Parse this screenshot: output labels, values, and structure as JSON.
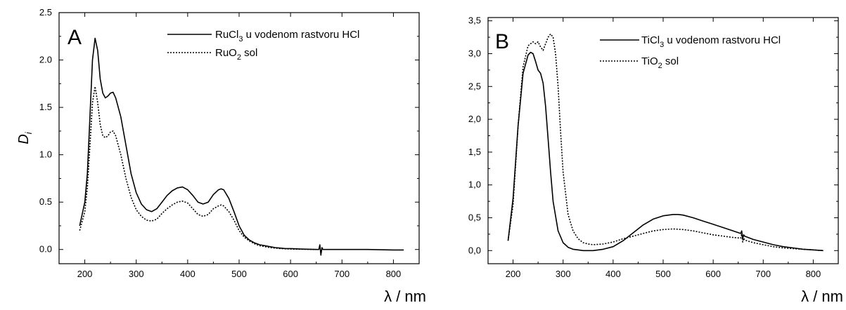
{
  "chart_data": [
    {
      "type": "line",
      "panel_letter": "A",
      "xlabel": "λ / nm",
      "ylabel": "D",
      "ylabel_sub": "i",
      "xlim": [
        150,
        850
      ],
      "ylim": [
        -0.15,
        2.5
      ],
      "xticks": [
        200,
        300,
        400,
        500,
        600,
        700,
        800
      ],
      "xtick_labels": [
        "200",
        "300",
        "400",
        "500",
        "600",
        "700",
        "800"
      ],
      "yticks": [
        0.0,
        0.5,
        1.0,
        1.5,
        2.0,
        2.5
      ],
      "ytick_labels": [
        "0.0",
        "0.5",
        "1.0",
        "1.5",
        "2.0",
        "2.5"
      ],
      "grid": false,
      "legend_position": "top-right",
      "series": [
        {
          "name": "RuCl",
          "name_sub": "3",
          "name_rest": " u vodenom rastvoru HCl",
          "style": "solid",
          "x": [
            190,
            200,
            205,
            210,
            215,
            220,
            225,
            230,
            235,
            240,
            245,
            250,
            255,
            260,
            270,
            280,
            290,
            300,
            310,
            320,
            330,
            340,
            350,
            360,
            370,
            380,
            390,
            400,
            410,
            420,
            430,
            440,
            450,
            460,
            465,
            470,
            480,
            490,
            500,
            510,
            520,
            530,
            540,
            550,
            560,
            570,
            580,
            590,
            600,
            620,
            650,
            655,
            657,
            659,
            661,
            663,
            670,
            700,
            750,
            800,
            820
          ],
          "y": [
            0.25,
            0.5,
            0.8,
            1.4,
            2.0,
            2.23,
            2.1,
            1.8,
            1.65,
            1.6,
            1.62,
            1.65,
            1.66,
            1.6,
            1.4,
            1.1,
            0.8,
            0.6,
            0.48,
            0.42,
            0.4,
            0.43,
            0.5,
            0.57,
            0.62,
            0.65,
            0.66,
            0.63,
            0.57,
            0.5,
            0.48,
            0.5,
            0.58,
            0.63,
            0.64,
            0.63,
            0.54,
            0.4,
            0.25,
            0.15,
            0.1,
            0.07,
            0.05,
            0.04,
            0.03,
            0.02,
            0.015,
            0.01,
            0.01,
            0.005,
            0.0,
            0.0,
            0.05,
            -0.06,
            0.02,
            0.0,
            0.0,
            0.0,
            0.0,
            -0.005,
            -0.005
          ]
        },
        {
          "name": "RuO",
          "name_sub": "2",
          "name_rest": " sol",
          "style": "dotted",
          "x": [
            190,
            200,
            205,
            210,
            215,
            220,
            225,
            230,
            235,
            240,
            245,
            250,
            255,
            260,
            270,
            280,
            290,
            300,
            310,
            320,
            330,
            340,
            350,
            360,
            370,
            380,
            390,
            400,
            410,
            420,
            430,
            440,
            450,
            460,
            465,
            470,
            480,
            490,
            500,
            510,
            520,
            530,
            540,
            550,
            560,
            570,
            580,
            600,
            650
          ],
          "y": [
            0.2,
            0.4,
            0.65,
            1.1,
            1.55,
            1.72,
            1.55,
            1.32,
            1.2,
            1.18,
            1.2,
            1.24,
            1.25,
            1.2,
            1.0,
            0.75,
            0.55,
            0.42,
            0.35,
            0.31,
            0.3,
            0.32,
            0.38,
            0.43,
            0.47,
            0.5,
            0.51,
            0.49,
            0.43,
            0.37,
            0.35,
            0.37,
            0.43,
            0.46,
            0.47,
            0.46,
            0.4,
            0.31,
            0.2,
            0.13,
            0.09,
            0.06,
            0.04,
            0.03,
            0.02,
            0.015,
            0.01,
            0.005,
            0.0
          ]
        }
      ]
    },
    {
      "type": "line",
      "panel_letter": "B",
      "xlabel": "λ / nm",
      "xlim": [
        150,
        850
      ],
      "ylim": [
        -0.2,
        3.55
      ],
      "xticks": [
        200,
        300,
        400,
        500,
        600,
        700,
        800
      ],
      "xtick_labels": [
        "200",
        "300",
        "400",
        "500",
        "600",
        "700",
        "800"
      ],
      "yticks": [
        0.0,
        0.5,
        1.0,
        1.5,
        2.0,
        2.5,
        3.0,
        3.5
      ],
      "ytick_labels": [
        "0,0",
        "0,5",
        "1,0",
        "1,5",
        "2,0",
        "2,5",
        "3,0",
        "3,5"
      ],
      "grid": false,
      "legend_position": "top-right",
      "series": [
        {
          "name": "TiCl",
          "name_sub": "3",
          "name_rest": " u vodenom rastvoru HCl",
          "style": "solid",
          "x": [
            190,
            200,
            210,
            220,
            230,
            235,
            240,
            245,
            250,
            255,
            260,
            265,
            270,
            275,
            280,
            290,
            300,
            310,
            320,
            330,
            340,
            350,
            360,
            380,
            400,
            420,
            440,
            460,
            480,
            500,
            520,
            530,
            540,
            560,
            580,
            600,
            620,
            640,
            655,
            657,
            659,
            661,
            663,
            680,
            700,
            720,
            740,
            760,
            780,
            800,
            820
          ],
          "y": [
            0.15,
            0.8,
            1.9,
            2.7,
            2.98,
            3.02,
            3.0,
            2.88,
            2.75,
            2.7,
            2.55,
            2.2,
            1.7,
            1.2,
            0.75,
            0.3,
            0.12,
            0.05,
            0.02,
            0.01,
            0.0,
            0.0,
            0.0,
            0.02,
            0.06,
            0.15,
            0.27,
            0.39,
            0.48,
            0.53,
            0.55,
            0.55,
            0.54,
            0.5,
            0.45,
            0.4,
            0.35,
            0.3,
            0.26,
            0.3,
            0.18,
            0.24,
            0.22,
            0.17,
            0.13,
            0.09,
            0.06,
            0.04,
            0.02,
            0.01,
            0.0
          ]
        },
        {
          "name": "TiO",
          "name_sub": "2",
          "name_rest": " sol",
          "style": "dotted",
          "x": [
            190,
            200,
            210,
            220,
            230,
            240,
            245,
            250,
            255,
            260,
            265,
            270,
            275,
            280,
            285,
            290,
            295,
            300,
            310,
            320,
            330,
            340,
            350,
            360,
            380,
            400,
            420,
            440,
            460,
            480,
            500,
            520,
            540,
            560,
            580,
            600,
            620,
            640,
            655,
            657,
            659,
            661,
            663,
            680,
            700,
            720,
            740,
            760,
            780,
            800,
            820
          ],
          "y": [
            0.15,
            0.7,
            1.9,
            2.8,
            3.12,
            3.18,
            3.15,
            3.18,
            3.1,
            3.05,
            3.15,
            3.25,
            3.3,
            3.25,
            3.0,
            2.5,
            1.8,
            1.2,
            0.55,
            0.3,
            0.18,
            0.12,
            0.1,
            0.09,
            0.1,
            0.13,
            0.18,
            0.22,
            0.26,
            0.3,
            0.32,
            0.33,
            0.32,
            0.3,
            0.27,
            0.24,
            0.22,
            0.2,
            0.19,
            0.25,
            0.13,
            0.19,
            0.16,
            0.12,
            0.09,
            0.06,
            0.04,
            0.03,
            0.02,
            0.01,
            0.0
          ]
        }
      ]
    }
  ]
}
